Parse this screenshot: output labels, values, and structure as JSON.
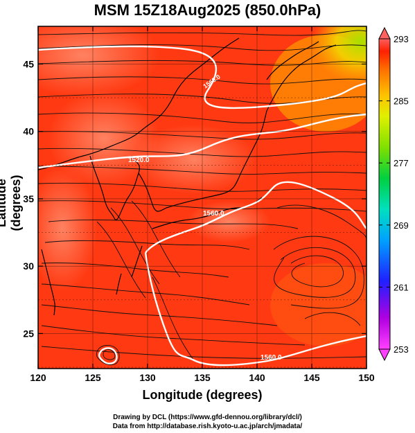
{
  "title": "MSM 15Z18Aug2025 (850.0hPa)",
  "axes": {
    "xlabel": "Longitude (degrees)",
    "ylabel": "Latitude  (degrees)",
    "x_ticks": [
      "120",
      "125",
      "130",
      "135",
      "140",
      "145",
      "150"
    ],
    "y_ticks": [
      "25",
      "30",
      "35",
      "40",
      "45"
    ]
  },
  "colorbar": {
    "ticks": [
      "293",
      "285",
      "277",
      "269",
      "261",
      "253"
    ],
    "min": 253,
    "max": 293,
    "colors": [
      "#ff40ff",
      "#b000e0",
      "#2020ff",
      "#00a0ff",
      "#00e0c0",
      "#00d040",
      "#80e000",
      "#e0f000",
      "#ffc000",
      "#ff7000",
      "#ff2000",
      "#ff6060"
    ]
  },
  "contours": [
    {
      "label": "1520.0"
    },
    {
      "label": "1560.0"
    },
    {
      "label": "1560.0"
    },
    {
      "label": "1560.0"
    }
  ],
  "credits": {
    "line1": "Drawing by DCL (https://www.gfd-dennou.org/library/dcl/)",
    "line2": "Data from http://database.rish.kyoto-u.ac.jp/arch/jmadata/"
  }
}
